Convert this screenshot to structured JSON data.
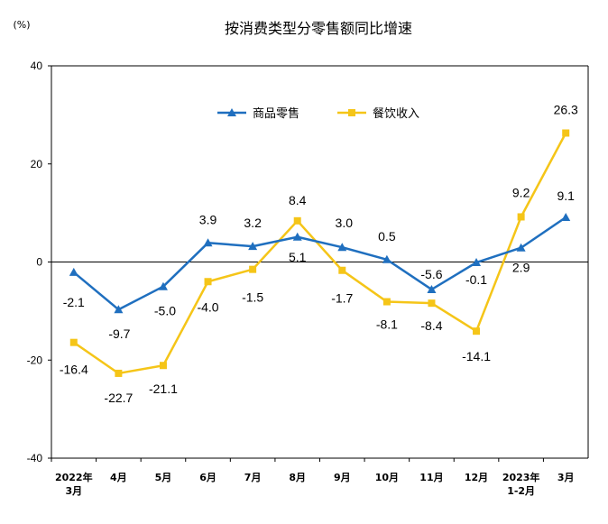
{
  "chart_data": {
    "type": "line",
    "title": "按消费类型分零售额同比增速",
    "ylabel": "(%)",
    "xlabel": "",
    "ylim": [
      -40,
      40
    ],
    "yticks": [
      40,
      20,
      0,
      -20,
      -40
    ],
    "grid": false,
    "legend_position": "top-center",
    "categories": [
      [
        "2022年",
        "3月"
      ],
      [
        "4月"
      ],
      [
        "5月"
      ],
      [
        "6月"
      ],
      [
        "7月"
      ],
      [
        "8月"
      ],
      [
        "9月"
      ],
      [
        "10月"
      ],
      [
        "11月"
      ],
      [
        "12月"
      ],
      [
        "2023年",
        "1-2月"
      ],
      [
        "3月"
      ]
    ],
    "series": [
      {
        "name": "商品零售",
        "color": "#1f6fbf",
        "marker": "triangle",
        "values": [
          -2.1,
          -9.7,
          -5.0,
          3.9,
          3.2,
          5.1,
          3.0,
          0.5,
          -5.6,
          -0.1,
          2.9,
          9.1
        ],
        "labels": [
          "-2.1",
          "-9.7",
          "-5.0",
          "3.9",
          "3.2",
          "5.1",
          "3.0",
          "0.5",
          "-5.6",
          "-0.1",
          "2.9",
          "9.1"
        ]
      },
      {
        "name": "餐饮收入",
        "color": "#f5c518",
        "marker": "square",
        "values": [
          -16.4,
          -22.7,
          -21.1,
          -4.0,
          -1.5,
          8.4,
          -1.7,
          -8.1,
          -8.4,
          -14.1,
          9.2,
          26.3
        ],
        "labels": [
          "-16.4",
          "-22.7",
          "-21.1",
          "-4.0",
          "-1.5",
          "8.4",
          "-1.7",
          "-8.1",
          "-8.4",
          "-14.1",
          "9.2",
          "26.3"
        ]
      }
    ]
  }
}
